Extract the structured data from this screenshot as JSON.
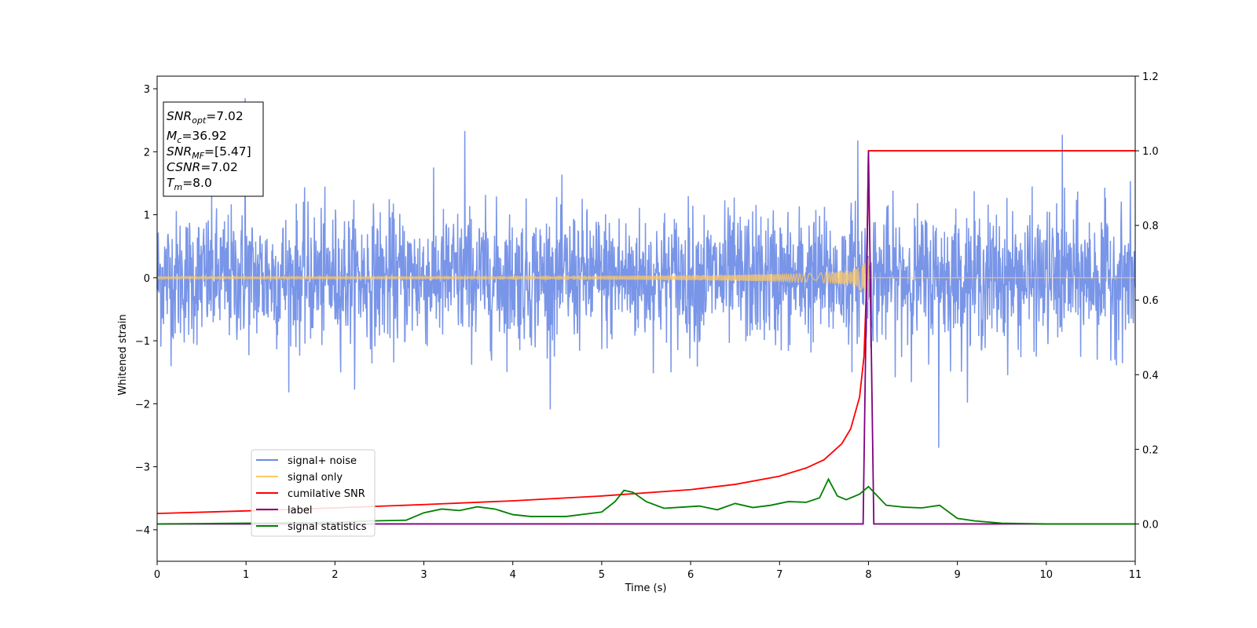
{
  "chart_data": {
    "type": "line",
    "xlabel": "Time (s)",
    "ylabel": "Whitened strain",
    "xlim": [
      0,
      11
    ],
    "ylim_left": [
      -4.5,
      3.2
    ],
    "ylim_right": [
      -0.1,
      1.2
    ],
    "x_ticks": [
      "0",
      "1",
      "2",
      "3",
      "4",
      "5",
      "6",
      "7",
      "8",
      "9",
      "10",
      "11"
    ],
    "y_ticks_left": [
      "3",
      "2",
      "1",
      "0",
      "−1",
      "−2",
      "−3",
      "−4"
    ],
    "y_ticks_left_values": [
      3,
      2,
      1,
      0,
      -1,
      -2,
      -3,
      -4
    ],
    "y_ticks_right": [
      "1.2",
      "1.0",
      "0.8",
      "0.6",
      "0.4",
      "0.2",
      "0.0"
    ],
    "y_ticks_right_values": [
      1.2,
      1.0,
      0.8,
      0.6,
      0.4,
      0.2,
      0.0
    ],
    "info_box": {
      "snr_opt": {
        "main": "SNR",
        "sub": "opt",
        "value": "=7.02"
      },
      "mc": {
        "main": "M",
        "sub": "c",
        "value": "=36.92"
      },
      "snr_mf": {
        "main": "SNR",
        "sub": "MF",
        "value": "=[5.47]"
      },
      "csnr": {
        "main": "CSNR",
        "value": "=7.02"
      },
      "tm": {
        "main": "T",
        "sub": "m",
        "value": "=8.0"
      }
    },
    "legend": {
      "position": "lower-left",
      "entries": [
        {
          "label": "signal+ noise",
          "color": "#6a8ae6"
        },
        {
          "label": "signal only",
          "color": "#ffc864"
        },
        {
          "label": "cumilative SNR",
          "color": "#ff0000"
        },
        {
          "label": "label",
          "color": "#800080"
        },
        {
          "label": "signal statistics",
          "color": "#008000"
        }
      ]
    },
    "series": [
      {
        "name": "signal+ noise",
        "axis": "left",
        "color": "#6a8ae6",
        "description_values": {
          "amplitude_sigma": 0.85,
          "peak_points": [
            [
              0.99,
              2.85
            ],
            [
              3.46,
              2.33
            ],
            [
              7.88,
              2.18
            ],
            [
              8.79,
              -2.7
            ],
            [
              10.18,
              2.27
            ]
          ]
        }
      },
      {
        "name": "signal only",
        "axis": "left",
        "color": "#ffc864",
        "chirp": {
          "t_merger": 8.0,
          "peak_amplitude": 0.55
        }
      },
      {
        "name": "cumilative SNR",
        "axis": "right",
        "color": "#ff0000",
        "x": [
          0,
          1,
          2,
          3,
          4,
          5,
          6,
          6.5,
          7,
          7.3,
          7.5,
          7.7,
          7.8,
          7.9,
          7.95,
          7.98,
          8.0,
          8.02,
          11
        ],
        "y": [
          0.028,
          0.035,
          0.043,
          0.052,
          0.062,
          0.075,
          0.092,
          0.106,
          0.128,
          0.15,
          0.172,
          0.215,
          0.255,
          0.34,
          0.45,
          0.65,
          1.0,
          1.0,
          1.0
        ]
      },
      {
        "name": "label",
        "axis": "right",
        "color": "#800080",
        "x": [
          0,
          7.94,
          8.0,
          8.06,
          11
        ],
        "y": [
          0.0,
          0.0,
          1.0,
          0.0,
          0.0
        ]
      },
      {
        "name": "signal statistics",
        "axis": "right",
        "color": "#008000",
        "x": [
          0,
          1,
          2,
          2.4,
          2.8,
          3.0,
          3.2,
          3.4,
          3.6,
          3.8,
          4.0,
          4.2,
          4.6,
          5.0,
          5.15,
          5.25,
          5.35,
          5.5,
          5.7,
          5.9,
          6.1,
          6.3,
          6.5,
          6.7,
          6.9,
          7.1,
          7.3,
          7.45,
          7.55,
          7.65,
          7.75,
          7.9,
          8.0,
          8.1,
          8.2,
          8.4,
          8.6,
          8.8,
          9.0,
          9.2,
          9.5,
          10,
          11
        ],
        "y": [
          0.0,
          0.002,
          0.004,
          0.008,
          0.01,
          0.03,
          0.04,
          0.036,
          0.046,
          0.04,
          0.025,
          0.02,
          0.02,
          0.032,
          0.06,
          0.09,
          0.085,
          0.06,
          0.042,
          0.045,
          0.048,
          0.038,
          0.055,
          0.044,
          0.05,
          0.06,
          0.058,
          0.07,
          0.12,
          0.075,
          0.065,
          0.08,
          0.1,
          0.075,
          0.05,
          0.045,
          0.043,
          0.05,
          0.015,
          0.008,
          0.002,
          0.0,
          0.0
        ]
      }
    ]
  }
}
